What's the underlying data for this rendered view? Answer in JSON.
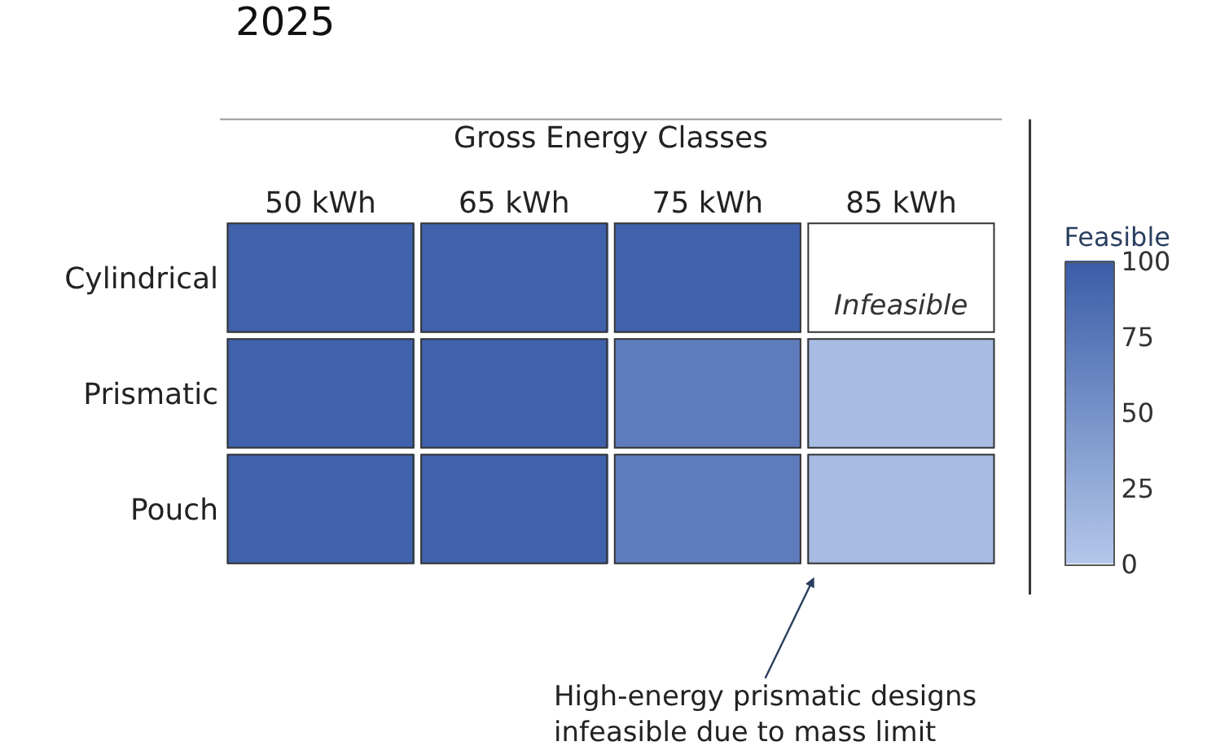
{
  "chart_data": {
    "type": "heatmap",
    "title": "2025",
    "xlabel": "Gross Energy Classes",
    "clabel": "Feasible",
    "categories": [
      "50 kWh",
      "65 kWh",
      "75 kWh",
      "85 kWh"
    ],
    "y_categories": [
      "Cylindrical",
      "Prismatic",
      "Pouch"
    ],
    "cells": [
      [
        95,
        95,
        95,
        null
      ],
      [
        95,
        95,
        70,
        10
      ],
      [
        95,
        95,
        70,
        10
      ]
    ],
    "cell_labels": [
      [
        null,
        null,
        null,
        "Infeasible"
      ],
      [
        null,
        null,
        null,
        null
      ],
      [
        null,
        null,
        null,
        null
      ]
    ],
    "clim": [
      0,
      100
    ],
    "cticks": [
      0,
      25,
      50,
      75,
      100
    ],
    "annotations": [
      "High-energy prismatic designs\ninfeasible due to mass limit"
    ]
  }
}
